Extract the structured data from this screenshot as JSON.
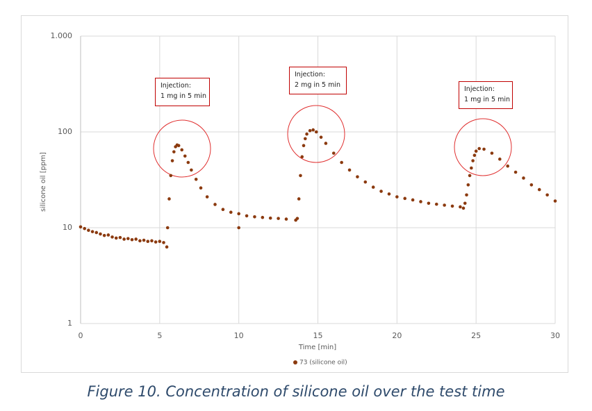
{
  "chart_data": {
    "type": "scatter",
    "caption": "Figure 10. Concentration of silicone oil over the test time",
    "x_label": "Time [min]",
    "y_label": "silicone oil [ppm]",
    "log_y": true,
    "grid": true,
    "legend": "bottom",
    "x": [
      0,
      0.25,
      0.5,
      0.75,
      1,
      1.25,
      1.5,
      1.75,
      2,
      2.25,
      2.5,
      2.75,
      3,
      3.25,
      3.5,
      3.75,
      4,
      4.25,
      4.5,
      4.75,
      5,
      5.25,
      5.45,
      5.5,
      5.6,
      5.7,
      5.8,
      5.9,
      6.0,
      6.1,
      6.2,
      6.4,
      6.6,
      6.8,
      7.0,
      7.3,
      7.6,
      8.0,
      8.5,
      9.0,
      9.5,
      10,
      10,
      10.5,
      11,
      11.5,
      12,
      12.5,
      13,
      13.6,
      13.7,
      13.8,
      13.9,
      14.0,
      14.1,
      14.2,
      14.3,
      14.5,
      14.7,
      14.9,
      15.2,
      15.5,
      16,
      16.5,
      17,
      17.5,
      18,
      18.5,
      19,
      19.5,
      20,
      20.5,
      21,
      21.5,
      22,
      22.5,
      23,
      23.5,
      24,
      24.2,
      24.3,
      24.4,
      24.5,
      24.6,
      24.7,
      24.8,
      24.9,
      25.0,
      25.2,
      25.5,
      26,
      26.5,
      27,
      27.5,
      28,
      28.5,
      29,
      29.5,
      30
    ],
    "series": [
      {
        "name": "73 (silicone oil)",
        "color": "#8b3a0f",
        "values": [
          10.2,
          9.8,
          9.4,
          9.1,
          8.9,
          8.6,
          8.3,
          8.4,
          8.0,
          7.8,
          7.9,
          7.6,
          7.7,
          7.5,
          7.6,
          7.3,
          7.4,
          7.2,
          7.3,
          7.1,
          7.2,
          7.0,
          6.3,
          10,
          20,
          35,
          50,
          62,
          70,
          73,
          72,
          65,
          56,
          48,
          40,
          32,
          26,
          21,
          17.5,
          15.5,
          14.5,
          14,
          10,
          13.3,
          13,
          12.8,
          12.6,
          12.5,
          12.3,
          12,
          12.5,
          20,
          35,
          55,
          72,
          85,
          95,
          103,
          105,
          100,
          88,
          76,
          60,
          48,
          40,
          34,
          30,
          26.5,
          24,
          22.5,
          21,
          20.2,
          19.5,
          18.7,
          18,
          17.6,
          17.2,
          16.8,
          16.5,
          16,
          18,
          22,
          28,
          35,
          42,
          50,
          57,
          63,
          67,
          66,
          60,
          52,
          44,
          38,
          33,
          28,
          25,
          22,
          19
        ]
      }
    ],
    "xlim": [
      0,
      30
    ],
    "xticks": [
      0,
      5,
      10,
      15,
      20,
      25,
      30
    ],
    "ylim": [
      1,
      1000
    ],
    "yticks": [
      1,
      10,
      100,
      {
        "value": 1000,
        "label": "1.000"
      }
    ],
    "annotations": [
      {
        "lines": [
          "Injection:",
          "1 mg in 5 min"
        ]
      },
      {
        "lines": [
          "Injection:",
          "2 mg in 5 min"
        ]
      },
      {
        "lines": [
          "Injection:",
          "1 mg in 5 min"
        ]
      }
    ]
  }
}
